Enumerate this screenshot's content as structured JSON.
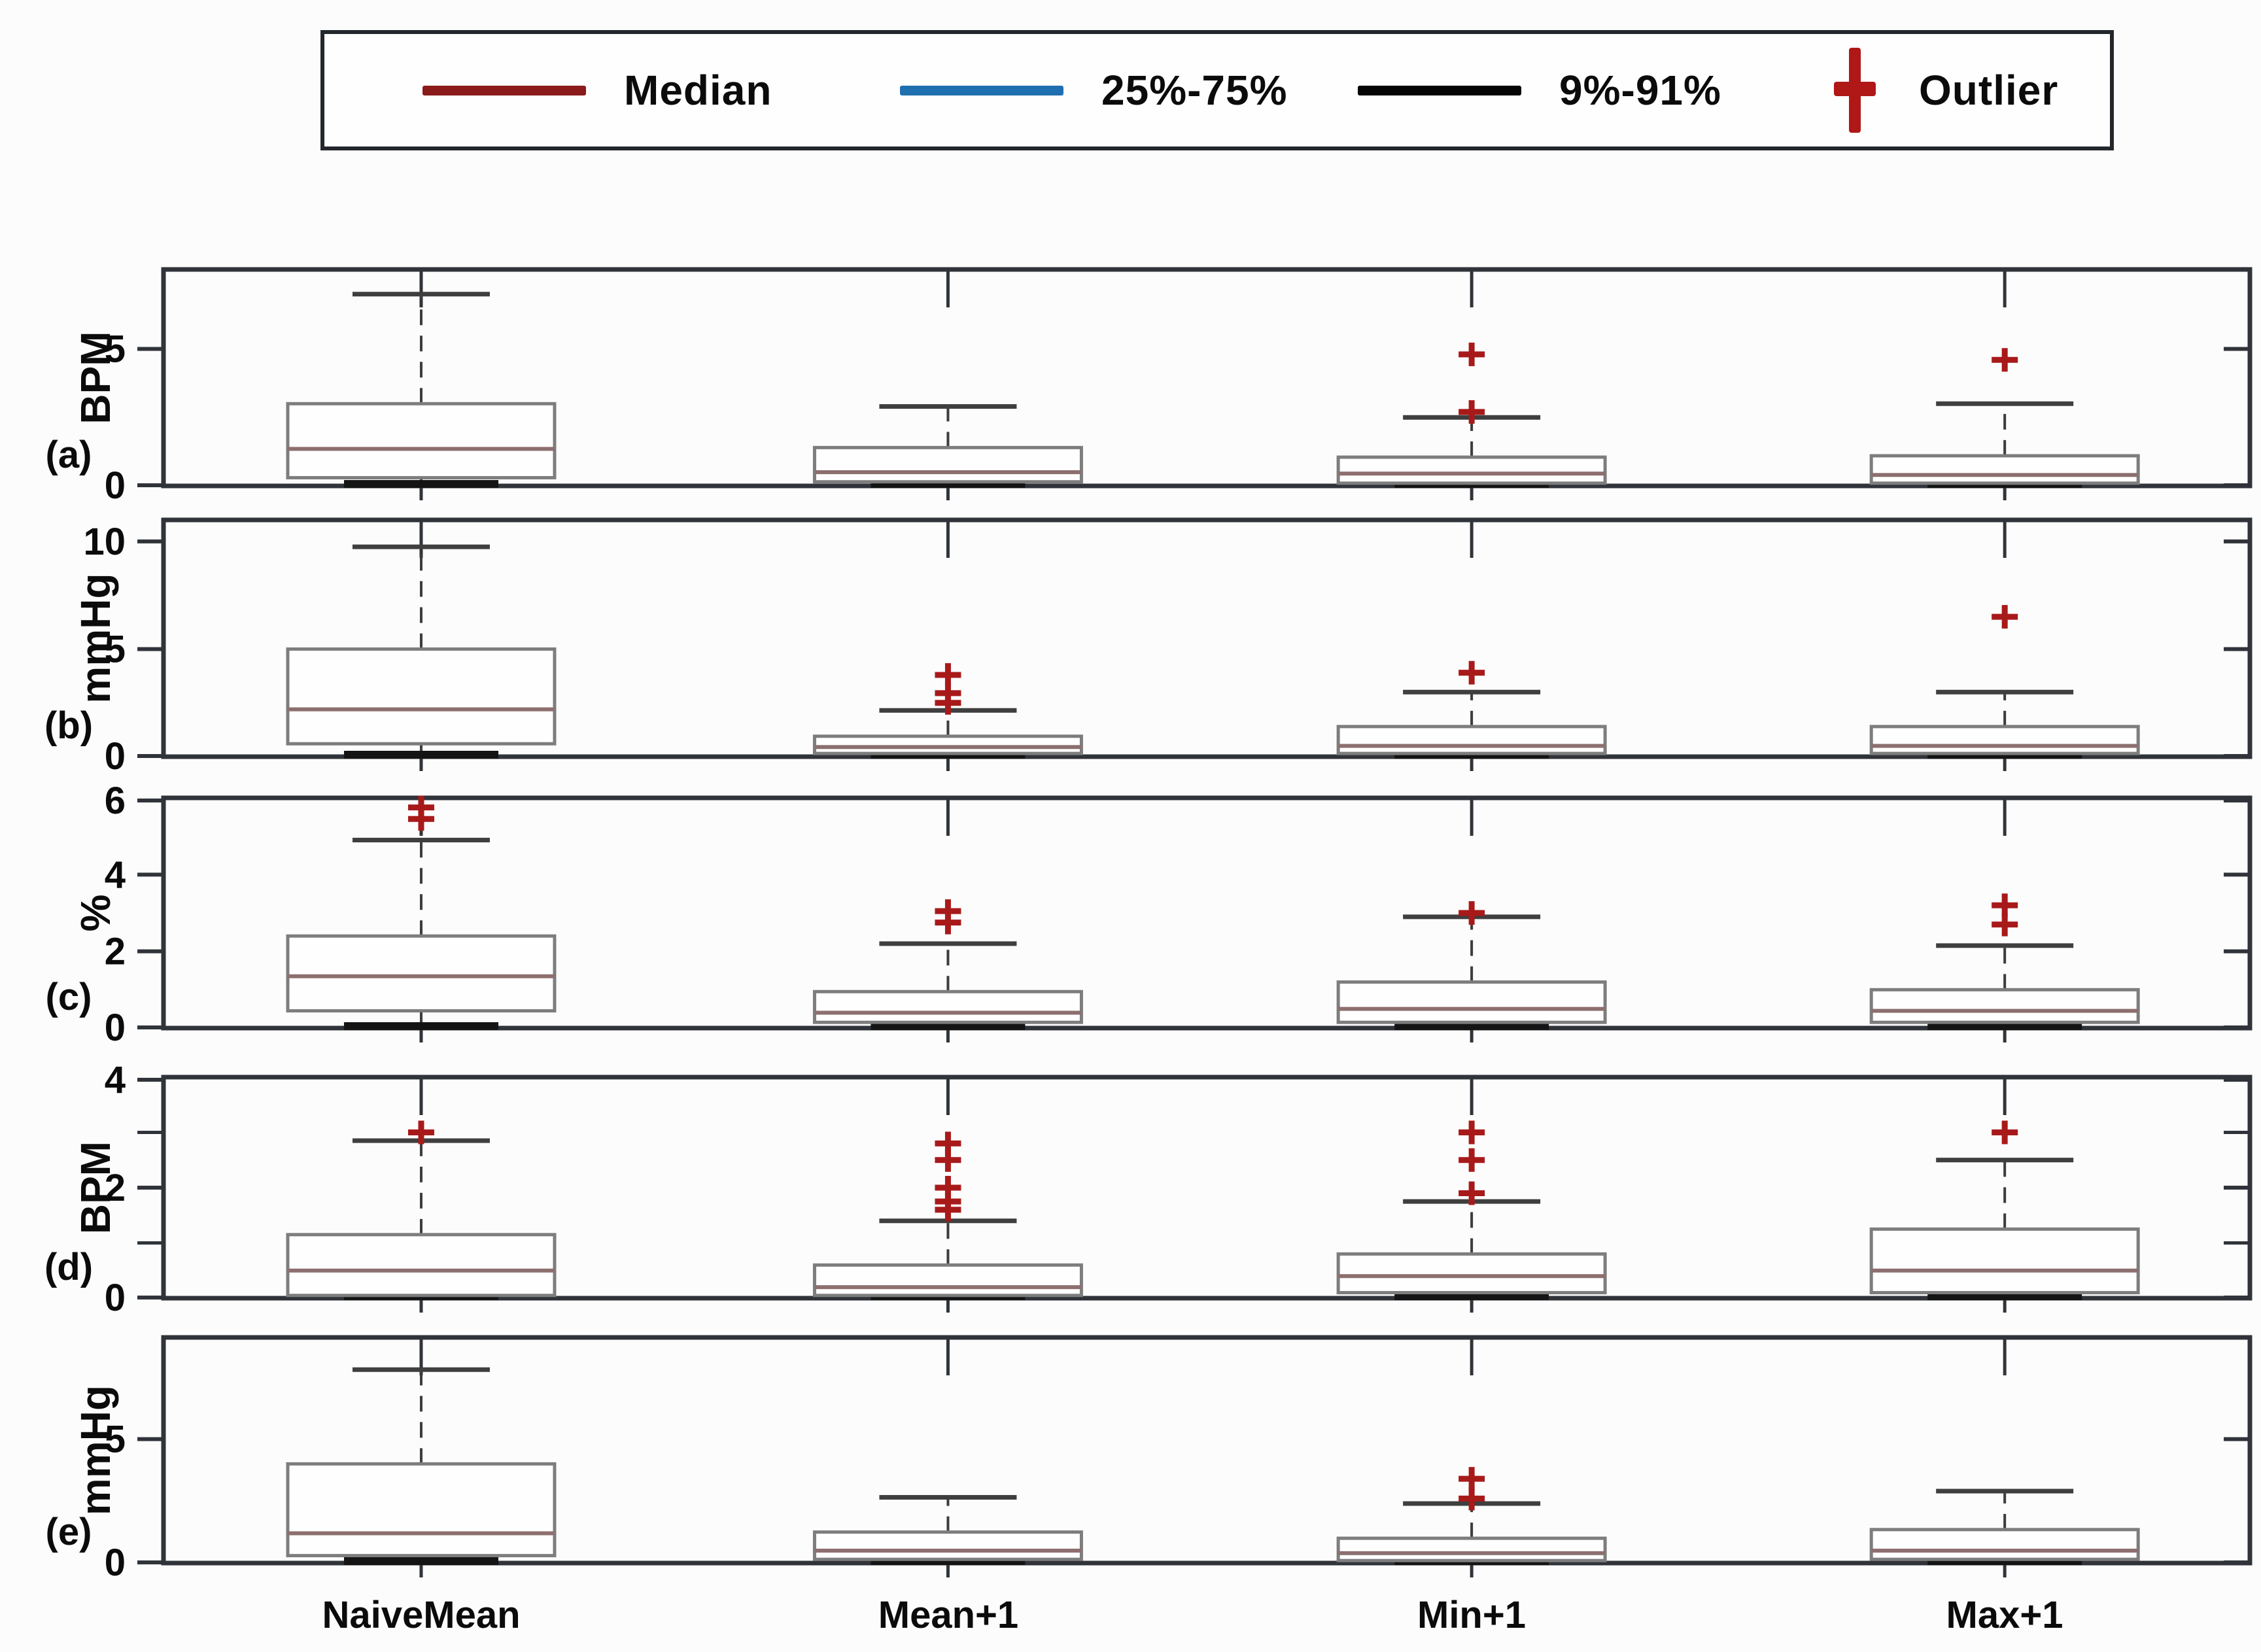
{
  "legend": {
    "items": [
      {
        "label": "Median",
        "marker": "line",
        "color": "#8B1A1A"
      },
      {
        "label": "25%-75%",
        "marker": "line",
        "color": "#1F6FB0"
      },
      {
        "label": "9%-91%",
        "marker": "line",
        "color": "#050505"
      },
      {
        "label": "Outlier",
        "marker": "plus",
        "color": "#B01717"
      }
    ]
  },
  "colors": {
    "frame": "#30343a",
    "box_stroke": "#7d7d7d",
    "median_line": "#8d6f6f",
    "whisker": "#3c3c3c",
    "cap": "#3f3f3f",
    "zero_cap": "#141414",
    "outlier": "#A81A1A",
    "tick_text": "#0b0b0b"
  },
  "chart_data": {
    "type": "boxplot",
    "categories": [
      "NaiveMean",
      "Mean+1",
      "Min+1",
      "Max+1"
    ],
    "legend_entries": [
      "Median",
      "25%-75%",
      "9%-91%",
      "Outlier"
    ],
    "grid": false,
    "legend_position": "top",
    "panels": [
      {
        "id": "a",
        "label": "(a)",
        "ylabel": "BPM",
        "ylim": [
          0,
          7.9
        ],
        "yticks": [
          0,
          5
        ],
        "minor_yticks": [],
        "boxes": [
          {
            "category": "NaiveMean",
            "whisker_low": 0,
            "q1": 0.3,
            "median": 1.35,
            "q3": 3.0,
            "whisker_high": 7.0,
            "outliers": []
          },
          {
            "category": "Mean+1",
            "whisker_low": 0,
            "q1": 0.15,
            "median": 0.5,
            "q3": 1.4,
            "whisker_high": 2.9,
            "outliers": []
          },
          {
            "category": "Min+1",
            "whisker_low": 0,
            "q1": 0.1,
            "median": 0.45,
            "q3": 1.05,
            "whisker_high": 2.5,
            "outliers": [
              2.7,
              4.8
            ]
          },
          {
            "category": "Max+1",
            "whisker_low": 0,
            "q1": 0.1,
            "median": 0.4,
            "q3": 1.1,
            "whisker_high": 3.0,
            "outliers": [
              4.6
            ]
          }
        ]
      },
      {
        "id": "b",
        "label": "(b)",
        "ylabel": "mmHg",
        "ylim": [
          0,
          11
        ],
        "yticks": [
          0,
          5,
          10
        ],
        "minor_yticks": [],
        "boxes": [
          {
            "category": "NaiveMean",
            "whisker_low": 0,
            "q1": 0.6,
            "median": 2.2,
            "q3": 5.0,
            "whisker_high": 9.75,
            "outliers": []
          },
          {
            "category": "Mean+1",
            "whisker_low": 0,
            "q1": 0.15,
            "median": 0.45,
            "q3": 0.95,
            "whisker_high": 2.15,
            "outliers": [
              2.5,
              2.95,
              3.8
            ]
          },
          {
            "category": "Min+1",
            "whisker_low": 0,
            "q1": 0.15,
            "median": 0.5,
            "q3": 1.4,
            "whisker_high": 3.0,
            "outliers": [
              3.9
            ]
          },
          {
            "category": "Max+1",
            "whisker_low": 0,
            "q1": 0.15,
            "median": 0.5,
            "q3": 1.4,
            "whisker_high": 3.0,
            "outliers": [
              6.5
            ]
          }
        ]
      },
      {
        "id": "c",
        "label": "(c)",
        "ylabel": "%",
        "ylim": [
          0,
          6
        ],
        "yticks": [
          0,
          2,
          4,
          6
        ],
        "minor_yticks": [],
        "boxes": [
          {
            "category": "NaiveMean",
            "whisker_low": 0,
            "q1": 0.45,
            "median": 1.35,
            "q3": 2.4,
            "whisker_high": 4.9,
            "outliers": [
              5.45,
              5.75
            ]
          },
          {
            "category": "Mean+1",
            "whisker_low": 0,
            "q1": 0.15,
            "median": 0.4,
            "q3": 0.95,
            "whisker_high": 2.2,
            "outliers": [
              2.75,
              3.05
            ]
          },
          {
            "category": "Min+1",
            "whisker_low": 0,
            "q1": 0.15,
            "median": 0.5,
            "q3": 1.2,
            "whisker_high": 2.9,
            "outliers": [
              3.0
            ]
          },
          {
            "category": "Max+1",
            "whisker_low": 0,
            "q1": 0.15,
            "median": 0.45,
            "q3": 1.0,
            "whisker_high": 2.15,
            "outliers": [
              2.7,
              3.2
            ]
          }
        ]
      },
      {
        "id": "d",
        "label": "(d)",
        "ylabel": "BPM",
        "ylim": [
          0,
          4
        ],
        "yticks": [
          0,
          2,
          4
        ],
        "minor_yticks": [
          1,
          3
        ],
        "boxes": [
          {
            "category": "NaiveMean",
            "whisker_low": 0,
            "q1": 0.05,
            "median": 0.5,
            "q3": 1.15,
            "whisker_high": 2.85,
            "outliers": [
              3.0
            ]
          },
          {
            "category": "Mean+1",
            "whisker_low": 0,
            "q1": 0.05,
            "median": 0.2,
            "q3": 0.6,
            "whisker_high": 1.4,
            "outliers": [
              1.6,
              1.75,
              2.0,
              2.5,
              2.8
            ]
          },
          {
            "category": "Min+1",
            "whisker_low": 0,
            "q1": 0.1,
            "median": 0.4,
            "q3": 0.8,
            "whisker_high": 1.75,
            "outliers": [
              1.9,
              2.5,
              3.0
            ]
          },
          {
            "category": "Max+1",
            "whisker_low": 0,
            "q1": 0.1,
            "median": 0.5,
            "q3": 1.25,
            "whisker_high": 2.5,
            "outliers": [
              3.0
            ]
          }
        ]
      },
      {
        "id": "e",
        "label": "(e)",
        "ylabel": "mmHg",
        "ylim": [
          0,
          9.1
        ],
        "yticks": [
          0,
          5
        ],
        "minor_yticks": [],
        "boxes": [
          {
            "category": "NaiveMean",
            "whisker_low": 0,
            "q1": 0.3,
            "median": 1.2,
            "q3": 4.0,
            "whisker_high": 7.8,
            "outliers": []
          },
          {
            "category": "Mean+1",
            "whisker_low": 0,
            "q1": 0.15,
            "median": 0.5,
            "q3": 1.25,
            "whisker_high": 2.65,
            "outliers": []
          },
          {
            "category": "Min+1",
            "whisker_low": 0,
            "q1": 0.1,
            "median": 0.4,
            "q3": 1.0,
            "whisker_high": 2.4,
            "outliers": [
              2.6,
              3.4
            ]
          },
          {
            "category": "Max+1",
            "whisker_low": 0,
            "q1": 0.15,
            "median": 0.5,
            "q3": 1.35,
            "whisker_high": 2.9,
            "outliers": []
          }
        ]
      }
    ]
  }
}
